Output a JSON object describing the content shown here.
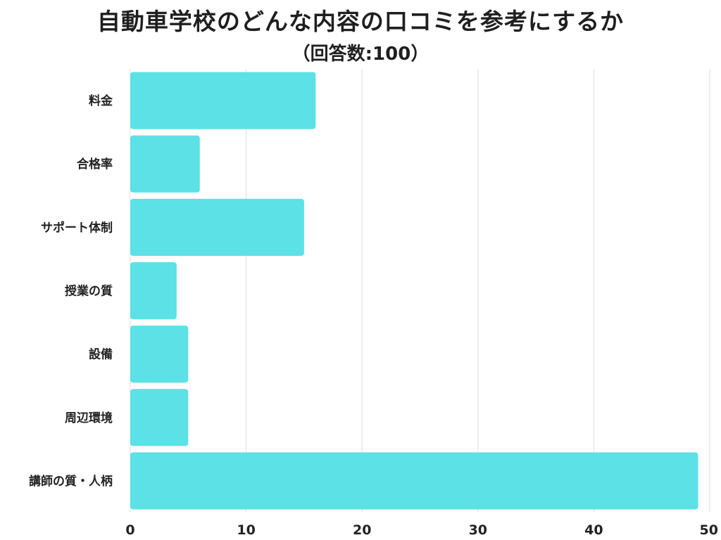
{
  "chart_data": {
    "type": "bar",
    "orientation": "horizontal",
    "title": "自動車学校のどんな内容の口コミを参考にするか",
    "subtitle": "（回答数:100）",
    "categories": [
      "料金",
      "合格率",
      "サポート体制",
      "授業の質",
      "設備",
      "周辺環境",
      "講師の質・人柄"
    ],
    "values": [
      16,
      6,
      15,
      4,
      5,
      5,
      49
    ],
    "xlim": [
      0,
      50
    ],
    "xticks": [
      "0",
      "10",
      "20",
      "30",
      "40",
      "50"
    ],
    "grid": true,
    "bar_color": "#5ce1e6",
    "grid_color": "#dddddd"
  }
}
